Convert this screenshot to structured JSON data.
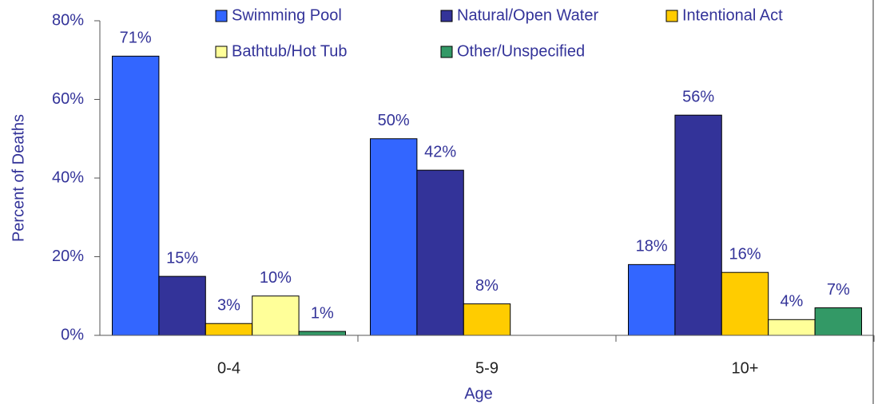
{
  "chart_data": {
    "type": "bar",
    "x_label": "Age",
    "y_label": "Percent of Deaths",
    "categories": [
      "0-4",
      "5-9",
      "10+"
    ],
    "series": [
      {
        "name": "Swimming Pool",
        "color": "#3366ff",
        "values": [
          71,
          50,
          18
        ],
        "value_labels": [
          "71%",
          "50%",
          "18%"
        ]
      },
      {
        "name": "Natural/Open Water",
        "color": "#333399",
        "values": [
          15,
          42,
          56
        ],
        "value_labels": [
          "15%",
          "42%",
          "56%"
        ]
      },
      {
        "name": "Intentional Act",
        "color": "#ffcc00",
        "values": [
          3,
          8,
          16
        ],
        "value_labels": [
          "3%",
          "8%",
          "16%"
        ]
      },
      {
        "name": "Bathtub/Hot Tub",
        "color": "#ffff99",
        "values": [
          10,
          null,
          4
        ],
        "value_labels": [
          "10%",
          null,
          "4%"
        ]
      },
      {
        "name": "Other/Unspecified",
        "color": "#339966",
        "values": [
          1,
          null,
          7
        ],
        "value_labels": [
          "1%",
          null,
          "7%"
        ]
      }
    ],
    "ylim": [
      0,
      80
    ],
    "yticks": [
      {
        "value": 0,
        "label": "0%"
      },
      {
        "value": 20,
        "label": "20%"
      },
      {
        "value": 40,
        "label": "40%"
      },
      {
        "value": 60,
        "label": "60%"
      },
      {
        "value": 80,
        "label": "80%"
      }
    ]
  }
}
